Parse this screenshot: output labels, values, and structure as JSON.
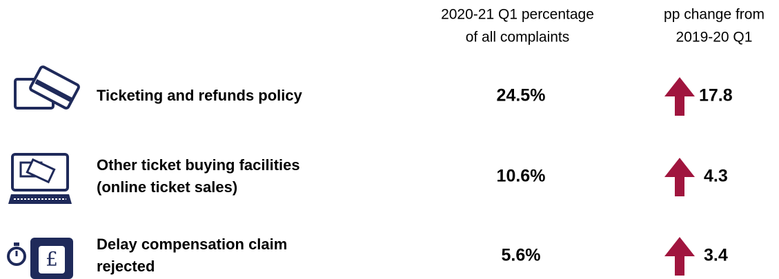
{
  "header": {
    "share": [
      "2020-21 Q1 percentage",
      "of all complaints"
    ],
    "change": [
      "pp change from",
      "2019-20 Q1"
    ]
  },
  "rows": [
    {
      "label": [
        "Ticketing and refunds policy"
      ],
      "share": "24.5%",
      "change": "17.8"
    },
    {
      "label": [
        "Other ticket buying facilities",
        "(online ticket sales)"
      ],
      "share": "10.6%",
      "change": "4.3"
    },
    {
      "label": [
        "Delay compensation claim",
        "rejected"
      ],
      "share": "5.6%",
      "change": "3.4"
    }
  ]
}
